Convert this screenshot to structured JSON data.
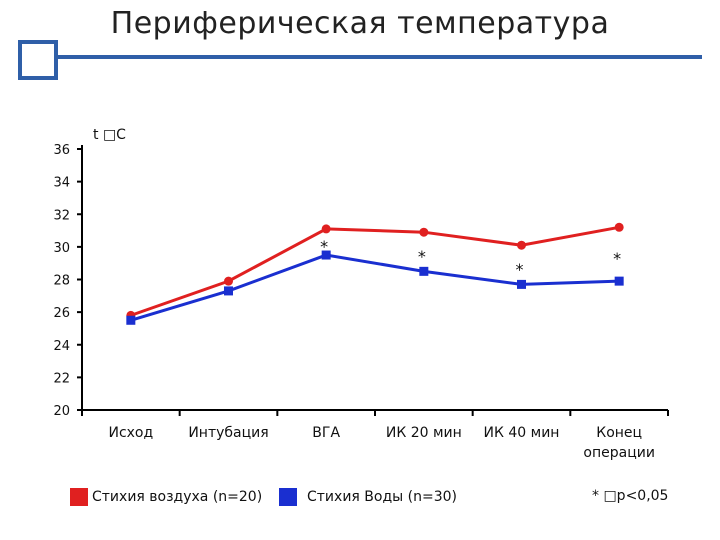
{
  "title": "Периферическая температура",
  "colors": {
    "accent": "#2f5fa8",
    "air": "#e02020",
    "water": "#1a2fd0"
  },
  "chart_data": {
    "type": "line",
    "ylabel": "t □С",
    "ylim": [
      20,
      36
    ],
    "yticks": [
      20,
      22,
      24,
      26,
      28,
      30,
      32,
      34,
      36
    ],
    "categories": [
      "Исход",
      "Интубация",
      "ВГА",
      "ИК 20 мин",
      "ИК 40 мин",
      "Конец\nоперации"
    ],
    "series": [
      {
        "name": "Стихия воздуха (n=20)",
        "color": "#e02020",
        "marker": "circle",
        "values": [
          25.8,
          27.9,
          31.1,
          30.9,
          30.1,
          31.2
        ]
      },
      {
        "name": "Стихия Воды (n=30)",
        "color": "#1a2fd0",
        "marker": "square",
        "values": [
          25.5,
          27.3,
          29.5,
          28.5,
          27.7,
          27.9
        ]
      }
    ],
    "annotations": [
      "*",
      "*",
      "*",
      "*"
    ],
    "annotation_categories": [
      2,
      3,
      4,
      5
    ],
    "footnote": "* □р<0,05",
    "grid": false,
    "legend_position": "bottom"
  }
}
